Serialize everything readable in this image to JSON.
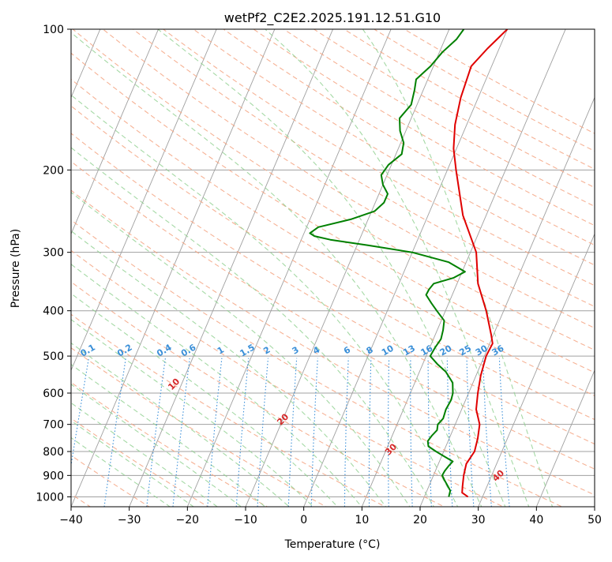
{
  "chart_data": {
    "type": "line",
    "diagram": "skew-T log-P",
    "title": "wetPf2_C2E2.2025.191.12.51.G10",
    "xlabel": "Temperature (°C)",
    "ylabel": "Pressure (hPa)",
    "xlim": [
      -40,
      50
    ],
    "ylim": [
      1050,
      100
    ],
    "y_scale": "log",
    "grid": true,
    "x_ticks": [
      -40,
      -30,
      -20,
      -10,
      0,
      10,
      20,
      30,
      40,
      50
    ],
    "y_ticks": [
      1000,
      900,
      800,
      700,
      600,
      500,
      400,
      300,
      200,
      100
    ],
    "series": [
      {
        "color": "#e00000",
        "points": [
          [
            1000,
            27.5
          ],
          [
            980,
            26.2
          ],
          [
            950,
            25.8
          ],
          [
            900,
            25.2
          ],
          [
            850,
            24.8
          ],
          [
            800,
            25.3
          ],
          [
            750,
            24.9
          ],
          [
            700,
            24.2
          ],
          [
            650,
            22.5
          ],
          [
            600,
            21.6
          ],
          [
            550,
            20.8
          ],
          [
            500,
            20.3
          ],
          [
            470,
            20.5
          ],
          [
            450,
            19.6
          ],
          [
            400,
            17.0
          ],
          [
            350,
            13.6
          ],
          [
            300,
            11.0
          ],
          [
            250,
            6.0
          ],
          [
            200,
            1.5
          ],
          [
            180,
            -0.5
          ],
          [
            160,
            -2.0
          ],
          [
            140,
            -3.0
          ],
          [
            120,
            -3.5
          ],
          [
            110,
            -2.0
          ],
          [
            100,
            0.0
          ]
        ]
      },
      {
        "color": "#008000",
        "points": [
          [
            1000,
            24.2
          ],
          [
            970,
            24.0
          ],
          [
            950,
            23.3
          ],
          [
            920,
            22.2
          ],
          [
            900,
            21.5
          ],
          [
            880,
            21.6
          ],
          [
            860,
            21.9
          ],
          [
            840,
            22.3
          ],
          [
            820,
            20.5
          ],
          [
            800,
            18.7
          ],
          [
            780,
            17.0
          ],
          [
            760,
            16.5
          ],
          [
            740,
            16.8
          ],
          [
            720,
            17.3
          ],
          [
            700,
            17.0
          ],
          [
            680,
            17.5
          ],
          [
            650,
            17.3
          ],
          [
            620,
            17.5
          ],
          [
            600,
            17.3
          ],
          [
            570,
            16.5
          ],
          [
            540,
            14.5
          ],
          [
            520,
            12.5
          ],
          [
            500,
            10.7
          ],
          [
            480,
            10.9
          ],
          [
            460,
            11.3
          ],
          [
            440,
            11.0
          ],
          [
            420,
            10.5
          ],
          [
            400,
            8.5
          ],
          [
            385,
            7.0
          ],
          [
            370,
            5.5
          ],
          [
            360,
            5.6
          ],
          [
            350,
            6.0
          ],
          [
            340,
            9.0
          ],
          [
            330,
            10.5
          ],
          [
            315,
            7.0
          ],
          [
            300,
            0.0
          ],
          [
            290,
            -8.0
          ],
          [
            282,
            -15.0
          ],
          [
            277,
            -18.0
          ],
          [
            273,
            -19.0
          ],
          [
            265,
            -18.0
          ],
          [
            255,
            -13.0
          ],
          [
            245,
            -9.5
          ],
          [
            235,
            -8.5
          ],
          [
            225,
            -8.5
          ],
          [
            215,
            -10.0
          ],
          [
            205,
            -11.0
          ],
          [
            195,
            -10.5
          ],
          [
            185,
            -9.0
          ],
          [
            175,
            -9.5
          ],
          [
            165,
            -11.0
          ],
          [
            155,
            -12.0
          ],
          [
            145,
            -11.0
          ],
          [
            135,
            -11.5
          ],
          [
            128,
            -12.0
          ],
          [
            120,
            -10.5
          ],
          [
            112,
            -9.5
          ],
          [
            105,
            -8.0
          ],
          [
            100,
            -7.5
          ]
        ]
      }
    ],
    "overlays": {
      "dry_adiabats_C": [
        -100,
        -90,
        -80,
        -70,
        -60,
        -50,
        -40,
        -30,
        -20,
        -10,
        0,
        10,
        20,
        30,
        40
      ],
      "mixing_ratio_labels": [
        "0.1",
        "0.2",
        "0.4",
        "0.6",
        "1",
        "1.5",
        "2",
        "3",
        "4",
        "6",
        "8",
        "10",
        "13",
        "16",
        "20",
        "25",
        "30",
        "36"
      ]
    },
    "colors": {
      "temperature": "#e00000",
      "dewpoint": "#008000",
      "isotherm_grid": "#a0a0a0",
      "dry_adiabat": "#f4a582",
      "moist_adiabat": "#8fcf8f",
      "mixing_ratio": "#3a8fd8",
      "adiabat_label_dark": "#2166ac",
      "adiabat_label_warm": "#d62728"
    }
  }
}
